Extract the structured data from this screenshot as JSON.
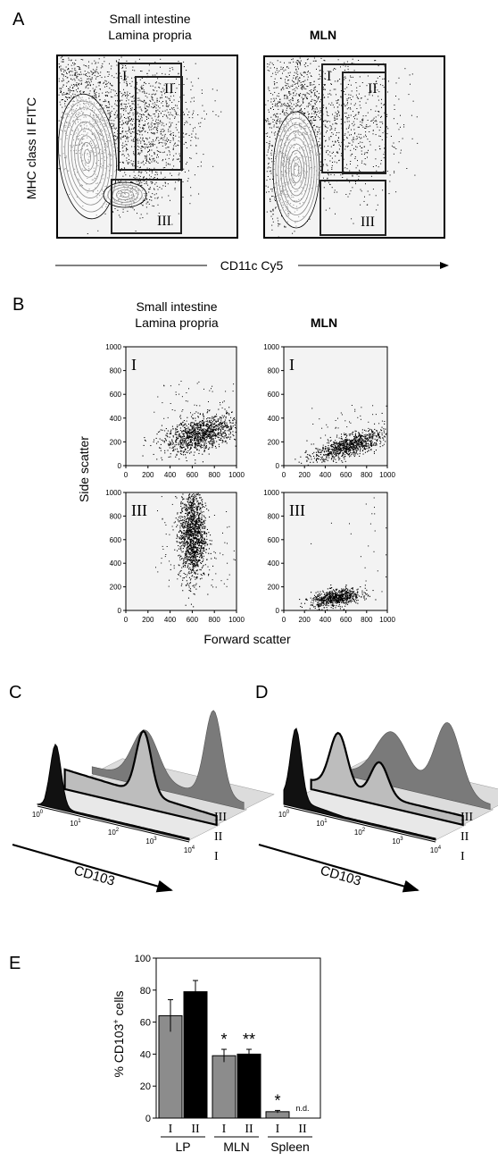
{
  "panelA": {
    "letter": "A",
    "title_left_line1": "Small intestine",
    "title_left_line2": "Lamina propria",
    "title_right": "MLN",
    "ylabel": "MHC class II FITC",
    "xlabel": "CD11c Cy5",
    "gates": [
      "I",
      "II",
      "III"
    ]
  },
  "panelB": {
    "letter": "B",
    "title_left_line1": "Small intestine",
    "title_left_line2": "Lamina propria",
    "title_right": "MLN",
    "ylabel": "Side scatter",
    "xlabel": "Forward scatter",
    "ticks": [
      "0",
      "200",
      "400",
      "600",
      "800",
      "1000"
    ],
    "plots": [
      {
        "tissue": "LP",
        "gate": "I",
        "cx": 680,
        "cy": 270,
        "sx": 170,
        "sy": 70,
        "tilt": 0.22,
        "n": 1100,
        "extra_y": 150
      },
      {
        "tissue": "MLN",
        "gate": "I",
        "cx": 620,
        "cy": 170,
        "sx": 170,
        "sy": 45,
        "tilt": 0.25,
        "n": 900,
        "extra_y": 120
      },
      {
        "tissue": "LP",
        "gate": "III",
        "cx": 600,
        "cy": 650,
        "sx": 60,
        "sy": 200,
        "tilt": 0,
        "n": 1400,
        "extra_y": 0
      },
      {
        "tissue": "MLN",
        "gate": "III",
        "cx": 500,
        "cy": 110,
        "sx": 120,
        "sy": 35,
        "tilt": 0.12,
        "n": 700,
        "extra_y": 600
      }
    ]
  },
  "panelC": {
    "letter": "C",
    "axis_label": "CD103",
    "exponents": [
      "0",
      "1",
      "2",
      "3",
      "4"
    ],
    "gates": [
      "I",
      "II",
      "III"
    ]
  },
  "panelD": {
    "letter": "D",
    "axis_label": "CD103",
    "exponents": [
      "0",
      "1",
      "2",
      "3",
      "4"
    ],
    "gates": [
      "I",
      "II",
      "III"
    ]
  },
  "panelE": {
    "letter": "E",
    "ylabel_main": "% CD103",
    "ylabel_sup": "+",
    "ylabel_tail": " cells",
    "ylim": [
      0,
      100
    ],
    "yticks": [
      "0",
      "20",
      "40",
      "60",
      "80",
      "100"
    ],
    "colors": {
      "I": "#8c8c8c",
      "II": "#000000"
    }
  },
  "chart_data": {
    "type": "bar",
    "ylabel": "% CD103+ cells",
    "ylim": [
      0,
      100
    ],
    "groups": [
      {
        "name": "LP",
        "bars": [
          {
            "gate": "I",
            "value": 64,
            "error": 10,
            "sig": ""
          },
          {
            "gate": "II",
            "value": 79,
            "error": 7,
            "sig": ""
          }
        ]
      },
      {
        "name": "MLN",
        "bars": [
          {
            "gate": "I",
            "value": 39,
            "error": 4,
            "sig": "*"
          },
          {
            "gate": "II",
            "value": 40,
            "error": 3,
            "sig": "**"
          }
        ]
      },
      {
        "name": "Spleen",
        "bars": [
          {
            "gate": "I",
            "value": 4,
            "error": 0.8,
            "sig": "*"
          },
          {
            "gate": "II",
            "value": null,
            "error": null,
            "sig": "",
            "note": "n.d."
          }
        ]
      }
    ]
  }
}
